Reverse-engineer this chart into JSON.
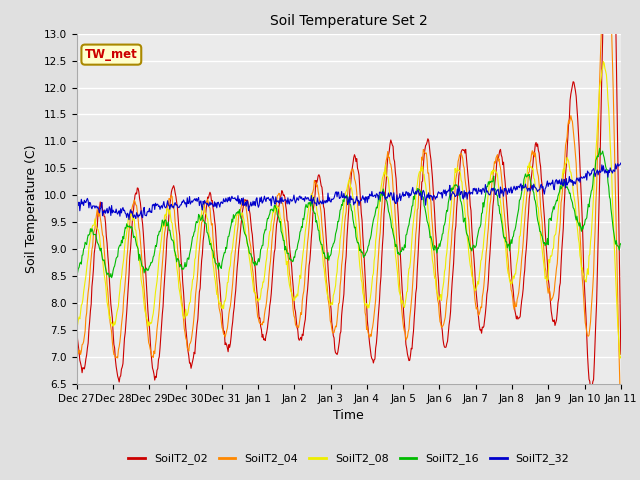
{
  "title": "Soil Temperature Set 2",
  "xlabel": "Time",
  "ylabel": "Soil Temperature (C)",
  "ylim": [
    6.5,
    13.0
  ],
  "yticks": [
    6.5,
    7.0,
    7.5,
    8.0,
    8.5,
    9.0,
    9.5,
    10.0,
    10.5,
    11.0,
    11.5,
    12.0,
    12.5,
    13.0
  ],
  "fig_bg_color": "#e0e0e0",
  "plot_bg_color": "#ebebeb",
  "grid_color": "#ffffff",
  "line_colors": {
    "SoilT2_02": "#cc0000",
    "SoilT2_04": "#ff8800",
    "SoilT2_08": "#eeee00",
    "SoilT2_16": "#00bb00",
    "SoilT2_32": "#0000cc"
  },
  "annotation_text": "TW_met",
  "annotation_color": "#cc0000",
  "annotation_bg": "#ffffcc",
  "annotation_border": "#aa8800",
  "day_labels": [
    "Dec 27",
    "Dec 28",
    "Dec 29",
    "Dec 30",
    "Dec 31",
    "Jan 1",
    "Jan 2",
    "Jan 3",
    "Jan 4",
    "Jan 5",
    "Jan 6",
    "Jan 7",
    "Jan 8",
    "Jan 9",
    "Jan 10",
    "Jan 11"
  ]
}
